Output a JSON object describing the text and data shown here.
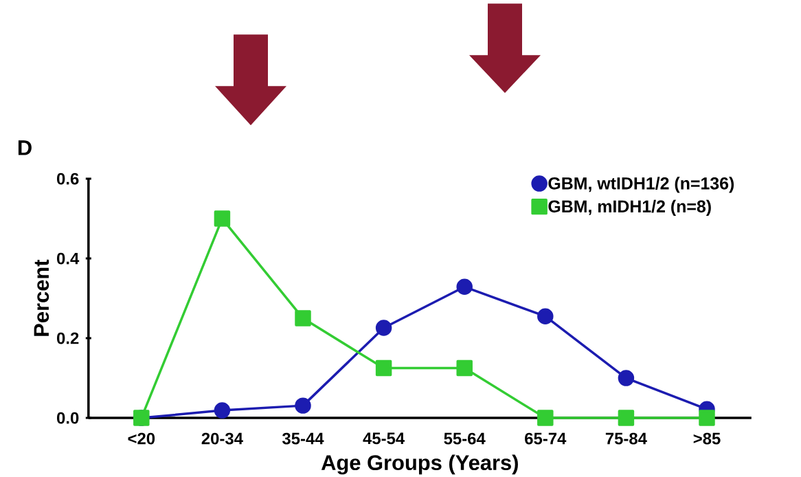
{
  "chart_data": {
    "type": "line",
    "xlabel": "Age Groups (Years)",
    "ylabel": "Percent",
    "annotations": [
      "D"
    ],
    "categories": [
      "<20",
      "20-34",
      "35-44",
      "45-54",
      "55-64",
      "65-74",
      "75-84",
      ">85"
    ],
    "series": [
      {
        "name": "GBM, wtIDH1/2 (n=136)",
        "color": "#1c1cb0",
        "marker": "circle",
        "values": [
          0,
          0.019,
          0.031,
          0.226,
          0.329,
          0.255,
          0.1,
          0.022
        ]
      },
      {
        "name": "GBM, mIDH1/2 (n=8)",
        "color": "#33cc33",
        "marker": "square",
        "values": [
          0,
          0.5,
          0.25,
          0.125,
          0.125,
          0,
          0,
          0
        ]
      }
    ],
    "ylim": [
      0,
      0.6
    ],
    "yticks": [
      {
        "value": 0,
        "label": "0.0"
      },
      0.2,
      0.4,
      0.6
    ],
    "grid": false,
    "legend": "top right",
    "line_style": "solid"
  }
}
